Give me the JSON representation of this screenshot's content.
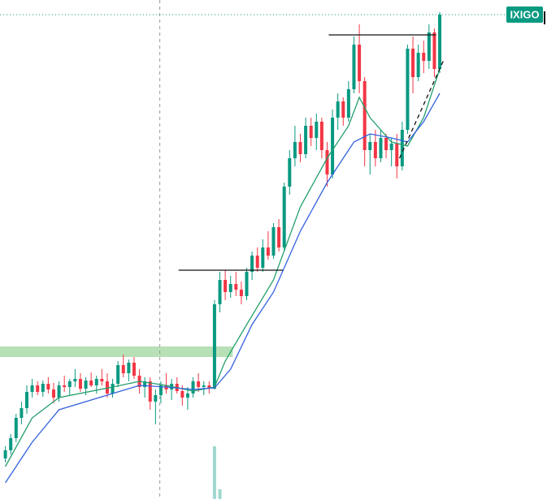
{
  "chart_data": {
    "type": "candlestick",
    "xlim": [
      -1,
      101
    ],
    "ylim": [
      0,
      615
    ],
    "up_color": "#089981",
    "down_color": "#f23645",
    "symbol": "IXIGO",
    "ohlc": [
      [
        50,
        65,
        45,
        60
      ],
      [
        60,
        80,
        55,
        75
      ],
      [
        75,
        105,
        70,
        100
      ],
      [
        100,
        120,
        92,
        112
      ],
      [
        112,
        140,
        105,
        132
      ],
      [
        132,
        148,
        125,
        140
      ],
      [
        140,
        145,
        128,
        132
      ],
      [
        132,
        146,
        126,
        142
      ],
      [
        142,
        150,
        130,
        135
      ],
      [
        135,
        143,
        118,
        125
      ],
      [
        125,
        145,
        120,
        140
      ],
      [
        140,
        152,
        132,
        138
      ],
      [
        138,
        148,
        128,
        145
      ],
      [
        145,
        160,
        138,
        148
      ],
      [
        148,
        155,
        132,
        136
      ],
      [
        136,
        150,
        128,
        146
      ],
      [
        146,
        156,
        138,
        140
      ],
      [
        140,
        152,
        130,
        148
      ],
      [
        148,
        160,
        140,
        145
      ],
      [
        145,
        155,
        125,
        130
      ],
      [
        130,
        148,
        125,
        142
      ],
      [
        142,
        170,
        138,
        165
      ],
      [
        165,
        178,
        150,
        155
      ],
      [
        155,
        172,
        145,
        168
      ],
      [
        168,
        175,
        148,
        152
      ],
      [
        152,
        160,
        130,
        138
      ],
      [
        138,
        150,
        125,
        145
      ],
      [
        145,
        150,
        110,
        120
      ],
      [
        120,
        135,
        92,
        128
      ],
      [
        128,
        145,
        118,
        140
      ],
      [
        140,
        155,
        130,
        135
      ],
      [
        135,
        148,
        122,
        142
      ],
      [
        142,
        150,
        130,
        133
      ],
      [
        133,
        140,
        115,
        125
      ],
      [
        125,
        138,
        110,
        130
      ],
      [
        130,
        150,
        125,
        145
      ],
      [
        145,
        155,
        132,
        138
      ],
      [
        138,
        145,
        128,
        140
      ],
      [
        140,
        145,
        130,
        136
      ],
      [
        136,
        245,
        135,
        240
      ],
      [
        240,
        280,
        230,
        270
      ],
      [
        270,
        282,
        245,
        255
      ],
      [
        255,
        275,
        248,
        265
      ],
      [
        265,
        280,
        250,
        258
      ],
      [
        258,
        268,
        240,
        250
      ],
      [
        250,
        285,
        245,
        280
      ],
      [
        280,
        305,
        270,
        300
      ],
      [
        300,
        310,
        280,
        285
      ],
      [
        285,
        320,
        280,
        310
      ],
      [
        310,
        330,
        295,
        300
      ],
      [
        300,
        340,
        296,
        335
      ],
      [
        335,
        345,
        305,
        310
      ],
      [
        310,
        390,
        305,
        385
      ],
      [
        385,
        430,
        375,
        420
      ],
      [
        420,
        460,
        410,
        440
      ],
      [
        440,
        450,
        415,
        425
      ],
      [
        425,
        470,
        420,
        460
      ],
      [
        460,
        470,
        435,
        445
      ],
      [
        445,
        475,
        430,
        465
      ],
      [
        465,
        470,
        420,
        430
      ],
      [
        430,
        440,
        385,
        400
      ],
      [
        400,
        480,
        395,
        470
      ],
      [
        470,
        500,
        455,
        490
      ],
      [
        490,
        495,
        460,
        470
      ],
      [
        470,
        515,
        465,
        505
      ],
      [
        505,
        570,
        500,
        560
      ],
      [
        560,
        585,
        500,
        515
      ],
      [
        515,
        520,
        410,
        430
      ],
      [
        430,
        450,
        400,
        440
      ],
      [
        440,
        455,
        410,
        420
      ],
      [
        420,
        455,
        415,
        445
      ],
      [
        445,
        450,
        420,
        430
      ],
      [
        430,
        445,
        410,
        438
      ],
      [
        438,
        450,
        395,
        410
      ],
      [
        410,
        465,
        405,
        455
      ],
      [
        455,
        560,
        450,
        555
      ],
      [
        555,
        570,
        500,
        520
      ],
      [
        520,
        560,
        515,
        550
      ],
      [
        550,
        565,
        525,
        540
      ],
      [
        540,
        585,
        530,
        575
      ],
      [
        575,
        580,
        520,
        530
      ],
      [
        530,
        600,
        525,
        597
      ]
    ],
    "series": [
      {
        "color": "#22a06b",
        "x": [
          0,
          5,
          10,
          20,
          25,
          30,
          35,
          39,
          41,
          45,
          50,
          55,
          60,
          64,
          66,
          68,
          72,
          75,
          78,
          81
        ],
        "values": [
          40,
          100,
          125,
          138,
          145,
          140,
          133,
          138,
          170,
          215,
          270,
          360,
          420,
          460,
          495,
          470,
          440,
          435,
          470,
          530
        ]
      },
      {
        "color": "#3461e0",
        "x": [
          0,
          5,
          10,
          20,
          25,
          30,
          35,
          39,
          42,
          46,
          50,
          55,
          60,
          65,
          68,
          72,
          75,
          78,
          81
        ],
        "values": [
          20,
          70,
          110,
          130,
          140,
          138,
          135,
          137,
          160,
          215,
          255,
          330,
          390,
          440,
          450,
          445,
          440,
          465,
          500
        ]
      }
    ],
    "volume": {
      "color": "#9fd8cf",
      "x": [
        39,
        40
      ],
      "values": [
        65,
        12
      ]
    },
    "levels": [
      {
        "value": 282,
        "x": [
          32.3,
          51.8
        ]
      },
      {
        "value": 572,
        "x": [
          60.3,
          80.3
        ]
      }
    ],
    "zone": {
      "from": 175,
      "to": 188,
      "x": [
        -1,
        42.4
      ],
      "color": "#b7e0b7"
    },
    "trendline": {
      "x": [
        73.5,
        81.8
      ],
      "values": [
        420,
        542
      ]
    },
    "cursor_x": 28.8
  }
}
